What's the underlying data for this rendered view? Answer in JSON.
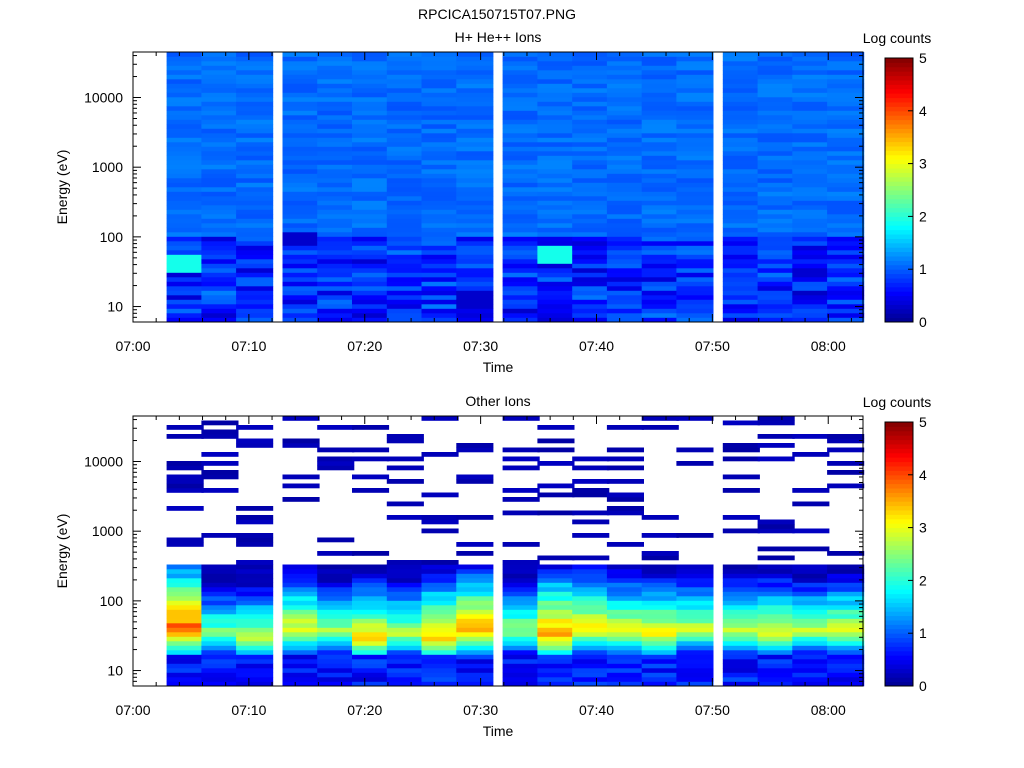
{
  "figure_title": "RPCICA150715T07.PNG",
  "colorbar_ticks": [
    "0",
    "1",
    "2",
    "3",
    "4",
    "5"
  ],
  "colors": {
    "colormap": [
      "#00008f",
      "#0000ff",
      "#00ffff",
      "#ffff00",
      "#ff0000",
      "#800000"
    ]
  },
  "chart_data": [
    {
      "type": "heatmap",
      "title": "H+ He++ Ions",
      "xlabel": "Time",
      "ylabel": "Energy (eV)",
      "colorbar_label": "Log counts",
      "y_scale": "log",
      "ylim_eV": [
        6,
        45000
      ],
      "xlim": [
        "07:00",
        "08:03"
      ],
      "clim": [
        0,
        5
      ],
      "x_ticks": [
        "07:00",
        "07:10",
        "07:20",
        "07:30",
        "07:40",
        "07:50",
        "08:00"
      ],
      "y_ticks": [
        "10",
        "100",
        "1000",
        "10000"
      ],
      "time_bins": [
        "07:03",
        "07:06",
        "07:09",
        "07:13",
        "07:16",
        "07:19",
        "07:22",
        "07:25",
        "07:28",
        "07:32",
        "07:35",
        "07:38",
        "07:41",
        "07:44",
        "07:47",
        "07:51",
        "07:54",
        "07:57",
        "08:00"
      ],
      "energy_range_eV": [
        6,
        45000
      ],
      "background_log_counts": [
        0.95,
        1.2
      ],
      "features": [
        {
          "time": "07:03",
          "energy_eV": 40,
          "log_counts": 1.9
        },
        {
          "time": "07:36",
          "energy_eV": 55,
          "log_counts": 1.9
        },
        {
          "time": "07:13",
          "energy_eV": 95,
          "log_counts": 0.3
        },
        {
          "time": "07:28",
          "energy_eV": 12,
          "log_counts": 0.3
        }
      ]
    },
    {
      "type": "heatmap",
      "title": "Other Ions",
      "xlabel": "Time",
      "ylabel": "Energy (eV)",
      "colorbar_label": "Log counts",
      "y_scale": "log",
      "ylim_eV": [
        6,
        45000
      ],
      "xlim": [
        "07:00",
        "08:03"
      ],
      "clim": [
        0,
        5
      ],
      "x_ticks": [
        "07:00",
        "07:10",
        "07:20",
        "07:30",
        "07:40",
        "07:50",
        "08:00"
      ],
      "y_ticks": [
        "10",
        "100",
        "1000",
        "10000"
      ],
      "time_bins": [
        "07:03",
        "07:06",
        "07:09",
        "07:13",
        "07:16",
        "07:19",
        "07:22",
        "07:25",
        "07:28",
        "07:32",
        "07:35",
        "07:38",
        "07:41",
        "07:44",
        "07:47",
        "07:51",
        "07:54",
        "07:57",
        "08:00"
      ],
      "peak_energy_eV": [
        42,
        35,
        30,
        40,
        38,
        30,
        35,
        32,
        40,
        38,
        35,
        42,
        38,
        35,
        40,
        38,
        35,
        38,
        38
      ],
      "peak_log_counts": [
        3.9,
        2.4,
        2.7,
        3.0,
        2.6,
        3.2,
        2.7,
        3.4,
        3.5,
        2.6,
        3.6,
        3.2,
        3.0,
        3.1,
        2.8,
        2.8,
        3.0,
        2.7,
        2.9
      ],
      "sparse_above_eV": 350,
      "sparse_log_counts": 0.1
    }
  ]
}
